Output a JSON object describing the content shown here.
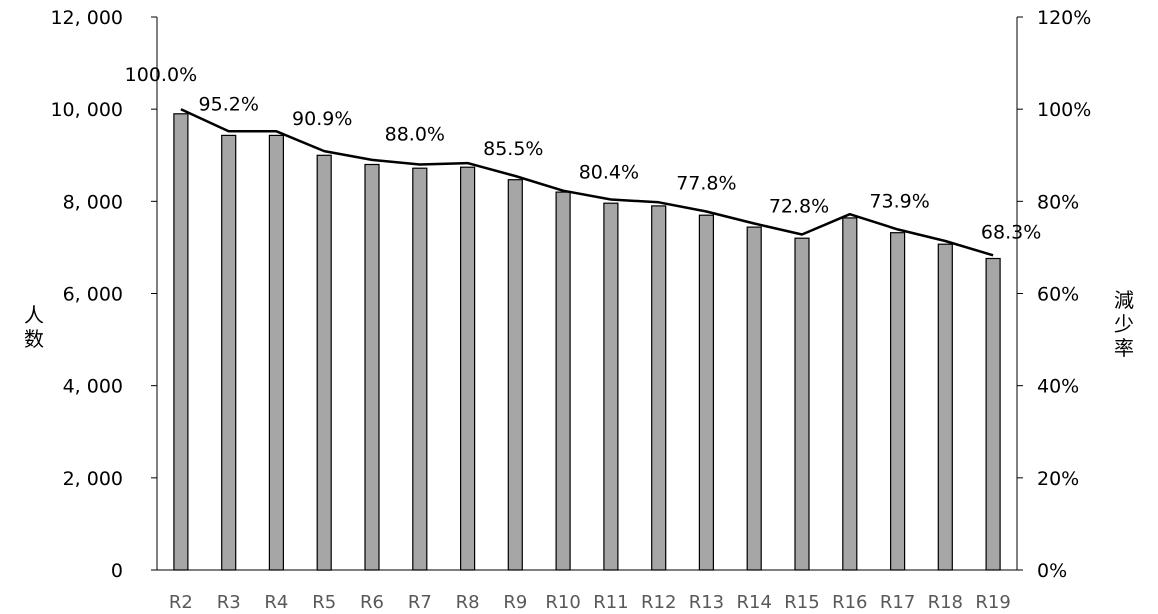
{
  "chart_data": {
    "type": "bar",
    "categories": [
      "R2",
      "R3",
      "R4",
      "R5",
      "R6",
      "R7",
      "R8",
      "R9",
      "R10",
      "R11",
      "R12",
      "R13",
      "R14",
      "R15",
      "R16",
      "R17",
      "R18",
      "R19"
    ],
    "series": [
      {
        "type": "bar",
        "axis": "left",
        "color": "#a6a6a6",
        "values": [
          9900,
          9430,
          9430,
          9000,
          8800,
          8720,
          8740,
          8470,
          8200,
          7960,
          7900,
          7700,
          7440,
          7200,
          7640,
          7320,
          7070,
          6760
        ]
      },
      {
        "type": "line",
        "axis": "right",
        "color": "#000000",
        "values": [
          100.0,
          95.2,
          95.2,
          90.9,
          89.0,
          88.0,
          88.3,
          85.5,
          82.3,
          80.4,
          79.8,
          77.8,
          75.2,
          72.8,
          77.2,
          73.9,
          71.4,
          68.3
        ]
      }
    ],
    "data_labels": {
      "indices": [
        0,
        1,
        3,
        5,
        7,
        9,
        11,
        13,
        15,
        17
      ],
      "texts": [
        "100.0%",
        "95.2%",
        "90.9%",
        "88.0%",
        "85.5%",
        "80.4%",
        "77.8%",
        "72.8%",
        "73.9%",
        "68.3%"
      ]
    },
    "ylabel_left": "人数",
    "ylabel_right": "減少率",
    "ylim_left": [
      0,
      12000
    ],
    "ylim_right": [
      0,
      120
    ],
    "yticks_left": [
      {
        "value": 0,
        "label": "0"
      },
      {
        "value": 2000,
        "label": "2, 000"
      },
      {
        "value": 4000,
        "label": "4, 000"
      },
      {
        "value": 6000,
        "label": "6, 000"
      },
      {
        "value": 8000,
        "label": "8, 000"
      },
      {
        "value": 10000,
        "label": "10, 000"
      },
      {
        "value": 12000,
        "label": "12, 000"
      }
    ],
    "yticks_right": [
      {
        "value": 0,
        "label": "0%"
      },
      {
        "value": 20,
        "label": "20%"
      },
      {
        "value": 40,
        "label": "40%"
      },
      {
        "value": 60,
        "label": "60%"
      },
      {
        "value": 80,
        "label": "80%"
      },
      {
        "value": 100,
        "label": "100%"
      },
      {
        "value": 120,
        "label": "120%"
      }
    ],
    "grid": false,
    "legend": "none"
  }
}
